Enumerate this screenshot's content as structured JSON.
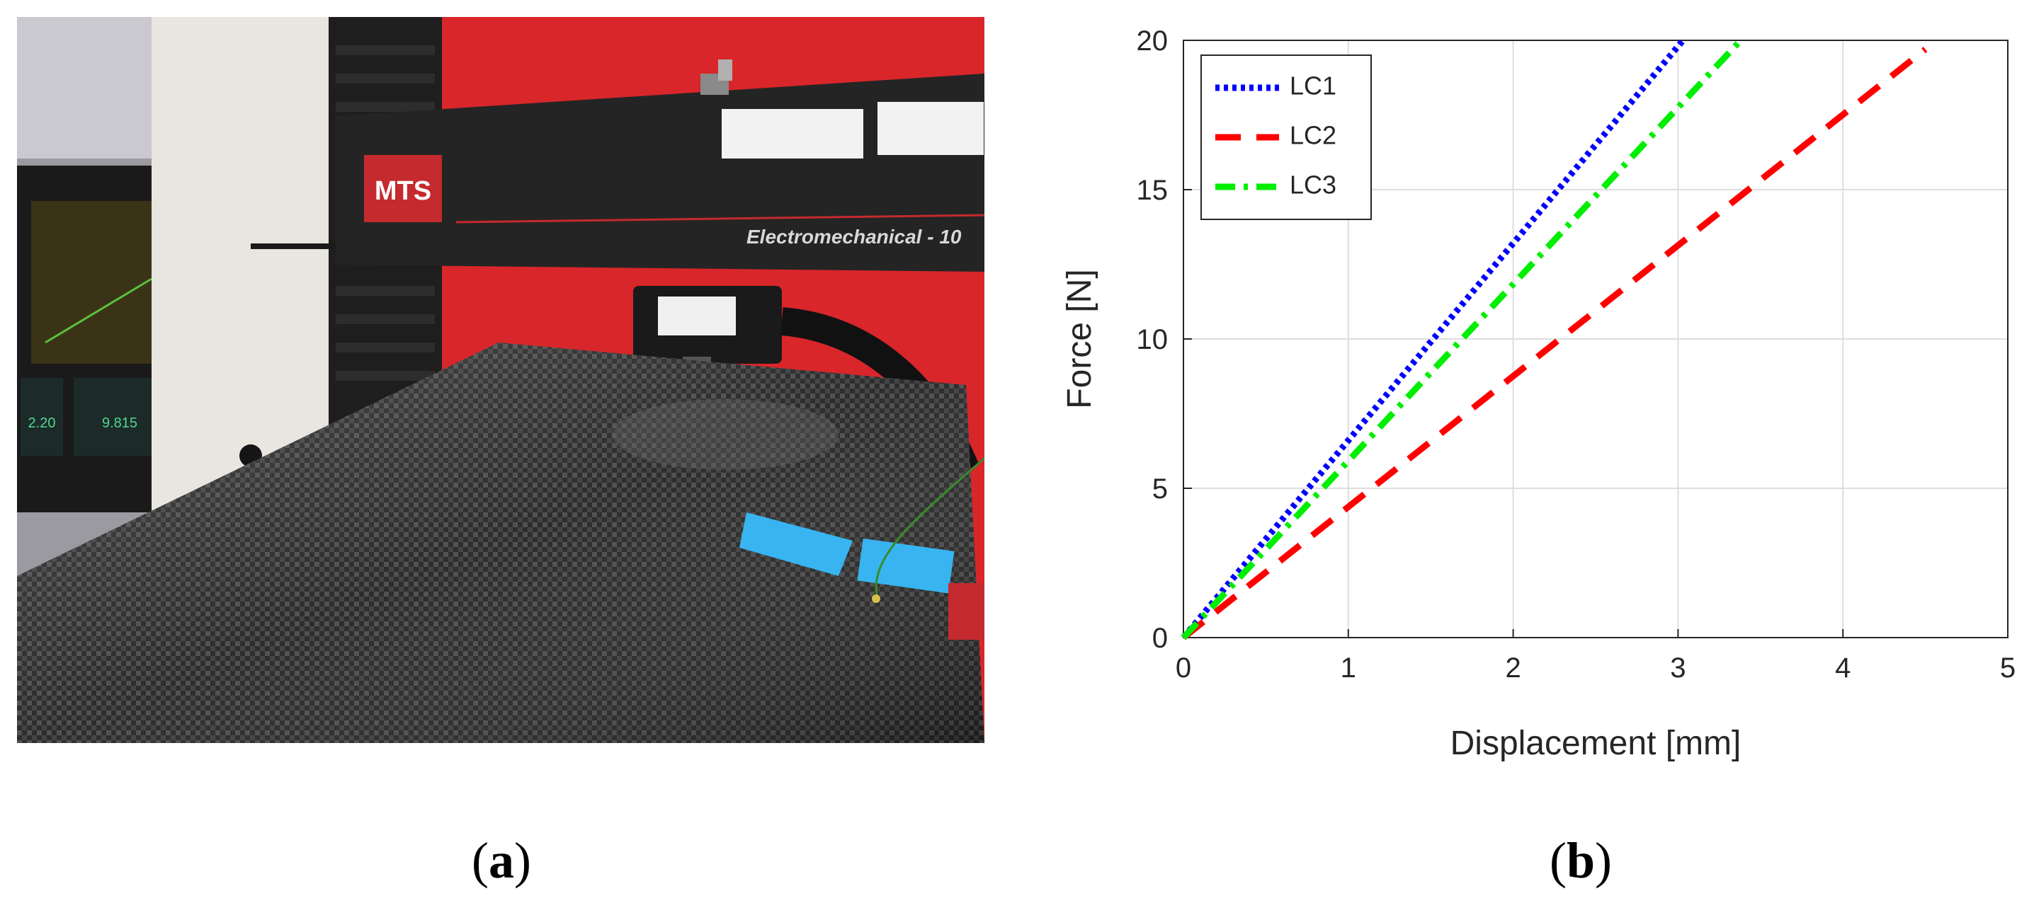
{
  "captions": {
    "a": "a",
    "b": "b"
  },
  "photo": {
    "brand_logo": "MTS",
    "model_text": "Electromechanical - 10",
    "monitor_readouts": [
      "2.20",
      "9.815"
    ],
    "colors": {
      "wall": "#d8262a",
      "frame": "#242424",
      "tape": "#38b4f0",
      "panel": "#2b2b2b",
      "column": "#e8e6df"
    }
  },
  "chart_data": {
    "type": "line",
    "title": "",
    "xlabel": "Displacement [mm]",
    "ylabel": "Force [N]",
    "xlim": [
      0,
      5
    ],
    "ylim": [
      0,
      20
    ],
    "xticks": [
      0,
      1,
      2,
      3,
      4,
      5
    ],
    "yticks": [
      0,
      5,
      10,
      15,
      20
    ],
    "grid": true,
    "legend_position": "top-left",
    "series": [
      {
        "name": "LC1",
        "color": "#0000ff",
        "style": "dotted",
        "x": [
          0,
          3.03
        ],
        "y": [
          0,
          20
        ]
      },
      {
        "name": "LC2",
        "color": "#ff0000",
        "style": "dashed",
        "x": [
          0,
          4.5
        ],
        "y": [
          0,
          19.7
        ]
      },
      {
        "name": "LC3",
        "color": "#00ee00",
        "style": "dashdot",
        "x": [
          0,
          3.38
        ],
        "y": [
          0,
          20
        ]
      }
    ]
  }
}
